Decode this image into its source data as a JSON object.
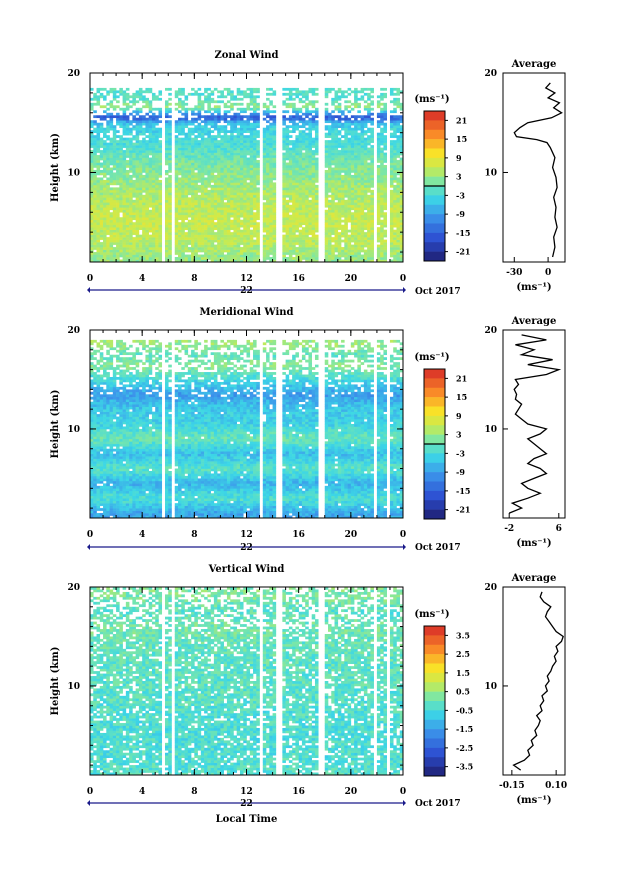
{
  "chart_data": [
    {
      "type": "heatmap",
      "title": "Zonal Wind",
      "ylabel": "Height (km)",
      "x_ticks": [
        "0",
        "4",
        "8",
        "12",
        "16",
        "20",
        "0"
      ],
      "x_range": [
        0,
        24
      ],
      "y_ticks": [
        "10",
        "20"
      ],
      "y_range": [
        1,
        20
      ],
      "date_tick": "22",
      "date_label": "Oct 2017",
      "colorbar": {
        "unit": "(ms⁻¹)",
        "ticks": [
          "21",
          "15",
          "9",
          "3",
          "-3",
          "-9",
          "-15",
          "-21"
        ],
        "range": [
          -24,
          24
        ],
        "zero_line": 0
      },
      "gaps_hours": [
        [
          5.5,
          5.8
        ],
        [
          6.2,
          6.6
        ],
        [
          12.9,
          13.3
        ],
        [
          14.2,
          14.7
        ],
        [
          17.5,
          17.9
        ],
        [
          21.8,
          22.1
        ],
        [
          22.7,
          23.0
        ]
      ],
      "data_top_km": 18.5,
      "profile_km": [
        1.5,
        3,
        5,
        7,
        9,
        11,
        12.5,
        13.5,
        14.5,
        15,
        15.5,
        16,
        16.5,
        17.5,
        18.5
      ],
      "profile_values": [
        3,
        5,
        6,
        5,
        3,
        1,
        -2,
        -3,
        -4,
        -6,
        -16,
        -9,
        3,
        -2,
        -1
      ],
      "average_profile": {
        "title": "Average",
        "x_ticks": [
          "-30",
          "0"
        ],
        "x_range": [
          -40,
          15
        ],
        "unit": "(ms⁻¹)",
        "heights_km": [
          1.5,
          2.5,
          3.5,
          4.5,
          5.5,
          6.5,
          7.5,
          8.5,
          9.5,
          10.5,
          11.5,
          12.5,
          13.0,
          13.3,
          13.6,
          14.0,
          14.5,
          15.0,
          15.5,
          16.0,
          16.5,
          17.0,
          17.5,
          18.0,
          18.5,
          19.0
        ],
        "values": [
          4,
          6,
          5,
          8,
          6,
          7,
          5,
          8,
          7,
          4,
          6,
          2,
          -1,
          -10,
          -28,
          -30,
          -25,
          -18,
          3,
          12,
          5,
          10,
          0,
          6,
          -2,
          2
        ]
      }
    },
    {
      "type": "heatmap",
      "title": "Meridional Wind",
      "ylabel": "Height (km)",
      "x_ticks": [
        "0",
        "4",
        "8",
        "12",
        "16",
        "20",
        "0"
      ],
      "x_range": [
        0,
        24
      ],
      "y_ticks": [
        "10",
        "20"
      ],
      "y_range": [
        1,
        20
      ],
      "date_tick": "22",
      "date_label": "Oct 2017",
      "colorbar": {
        "unit": "(ms⁻¹)",
        "ticks": [
          "21",
          "15",
          "9",
          "3",
          "-3",
          "-9",
          "-15",
          "-21"
        ],
        "range": [
          -24,
          24
        ],
        "zero_line": 0
      },
      "gaps_hours": [
        [
          5.5,
          5.8
        ],
        [
          6.2,
          6.6
        ],
        [
          12.9,
          13.3
        ],
        [
          14.2,
          14.7
        ],
        [
          17.5,
          17.9
        ],
        [
          21.8,
          22.1
        ],
        [
          22.7,
          23.0
        ]
      ],
      "data_top_km": 18.8,
      "profile_km": [
        1.5,
        3,
        4.5,
        6,
        7.5,
        9,
        10.5,
        12,
        13.5,
        15,
        16.5,
        17.5,
        18.5
      ],
      "profile_values": [
        -8,
        -2,
        -7,
        -1,
        -6,
        0,
        -4,
        -5,
        -9,
        -3,
        2,
        -1,
        3
      ],
      "average_profile": {
        "title": "Average",
        "x_ticks": [
          "-2",
          "6"
        ],
        "x_range": [
          -3,
          7
        ],
        "unit": "(ms⁻¹)",
        "heights_km": [
          1.5,
          2.0,
          2.5,
          3.0,
          3.5,
          4.0,
          4.5,
          5.0,
          5.5,
          6.0,
          6.5,
          7.0,
          7.5,
          8.0,
          8.5,
          9.0,
          9.5,
          10.0,
          10.5,
          11.0,
          11.5,
          12.0,
          12.5,
          13.0,
          13.5,
          14.0,
          14.5,
          15.0,
          15.5,
          16.0,
          16.5,
          17.0,
          17.5,
          18.0,
          18.5,
          19.0,
          19.5
        ],
        "values": [
          -2,
          0,
          -1.5,
          1,
          3,
          1,
          0,
          2,
          4,
          3,
          1,
          2,
          4,
          3,
          2,
          1,
          3,
          4,
          1,
          0,
          -1,
          -0.5,
          0,
          -1,
          -0.8,
          -1.2,
          -0.5,
          -1,
          4,
          6,
          1,
          5,
          0,
          2,
          -1,
          4,
          0
        ]
      }
    },
    {
      "type": "heatmap",
      "title": "Vertical Wind",
      "xlabel": "Local Time",
      "ylabel": "Height (km)",
      "x_ticks": [
        "0",
        "4",
        "8",
        "12",
        "16",
        "20",
        "0"
      ],
      "x_range": [
        0,
        24
      ],
      "y_ticks": [
        "10",
        "20"
      ],
      "y_range": [
        1,
        20
      ],
      "date_tick": "22",
      "date_label": "Oct 2017",
      "colorbar": {
        "unit": "(ms⁻¹)",
        "ticks": [
          "3.5",
          "2.5",
          "1.5",
          "0.5",
          "-0.5",
          "-1.5",
          "-2.5",
          "-3.5"
        ],
        "range": [
          -4,
          4
        ]
      },
      "gaps_hours": [
        [
          5.5,
          5.8
        ],
        [
          6.2,
          6.6
        ],
        [
          12.9,
          13.3
        ],
        [
          14.2,
          14.7
        ],
        [
          17.5,
          17.9
        ],
        [
          21.8,
          22.1
        ],
        [
          22.7,
          23.0
        ]
      ],
      "data_top_km": 19.8,
      "profile_km": [
        1.5,
        5,
        10,
        14,
        16,
        17.5,
        19
      ],
      "profile_values": [
        -0.3,
        -0.4,
        -0.2,
        -0.1,
        0.1,
        -0.2,
        0.2
      ],
      "average_profile": {
        "title": "Average",
        "x_ticks": [
          "-0.15",
          "0.10"
        ],
        "x_range": [
          -0.2,
          0.15
        ],
        "unit": "(ms⁻¹)",
        "heights_km": [
          1.5,
          2.0,
          2.5,
          3.0,
          3.5,
          4.0,
          4.5,
          5.0,
          5.5,
          6.0,
          6.5,
          7.0,
          7.5,
          8.0,
          8.5,
          9.0,
          9.5,
          10.0,
          10.5,
          11.0,
          11.5,
          12.0,
          12.5,
          13.0,
          13.5,
          14.0,
          14.5,
          15.0,
          15.5,
          16.0,
          16.5,
          17.0,
          17.5,
          18.0,
          18.5,
          19.0,
          19.5
        ],
        "values": [
          -0.1,
          -0.14,
          -0.08,
          -0.05,
          -0.06,
          -0.03,
          -0.04,
          -0.01,
          -0.02,
          0.0,
          0.01,
          -0.01,
          0.02,
          0.01,
          0.03,
          0.02,
          0.05,
          0.04,
          0.06,
          0.05,
          0.07,
          0.08,
          0.1,
          0.09,
          0.11,
          0.1,
          0.13,
          0.14,
          0.1,
          0.08,
          0.06,
          0.04,
          0.05,
          0.07,
          0.03,
          0.01,
          0.02
        ]
      }
    }
  ]
}
